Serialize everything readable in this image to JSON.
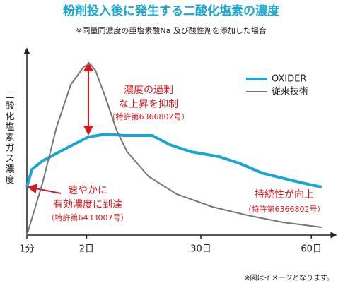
{
  "chart_data": {
    "type": "line",
    "title": "粉剤投入後に発生する二酸化塩素の濃度",
    "subtitle": "※同量同濃度の亜塩素酸Na 及び酸性剤を添加した場合",
    "ylabel": "二酸化塩素ガス濃度",
    "footnote": "※図はイメージとなります。",
    "xlim": [
      0,
      100
    ],
    "ylim": [
      0,
      100
    ],
    "xticks": [
      {
        "value": 0,
        "label": "1分"
      },
      {
        "value": 20,
        "label": "2日"
      },
      {
        "value": 58.3,
        "label": "30日"
      },
      {
        "value": 95.3,
        "label": "60日"
      }
    ],
    "legend": "top-right",
    "series": [
      {
        "name": "OXIDER",
        "color": "#1aa6d4",
        "x": [
          0,
          1.7,
          5.2,
          12.3,
          20.6,
          26.5,
          32.5,
          42,
          47.9,
          55,
          64.5,
          71.6,
          78.7,
          88.2,
          95.3,
          98.8
        ],
        "values": [
          27.2,
          37.2,
          42,
          48.4,
          55.6,
          57.2,
          56.4,
          56.4,
          51.2,
          47.2,
          44.4,
          40.4,
          35.2,
          31.2,
          28.4,
          27.2
        ]
      },
      {
        "name": "従来技術",
        "color": "#777777",
        "x": [
          0,
          5.2,
          9.95,
          14.7,
          19,
          21.1,
          23,
          26.5,
          30.1,
          33.6,
          40.8,
          50.2,
          62.1,
          73.9,
          85.8,
          98.8
        ],
        "values": [
          0,
          29.2,
          61.2,
          85.2,
          95.2,
          97.2,
          93.2,
          77.2,
          59.2,
          47.2,
          33.2,
          23.2,
          16,
          11.2,
          7.2,
          4.4
        ]
      }
    ],
    "annotations": [
      {
        "lines": [
          "濃度の過剰",
          "な上昇を抑制",
          "（特許第6366802号）"
        ]
      },
      {
        "lines": [
          "速やかに",
          "有効濃度に到達",
          "（特許第6433007号）"
        ]
      },
      {
        "lines": [
          "持続性が向上",
          "（特許第6366802号）"
        ]
      }
    ]
  }
}
